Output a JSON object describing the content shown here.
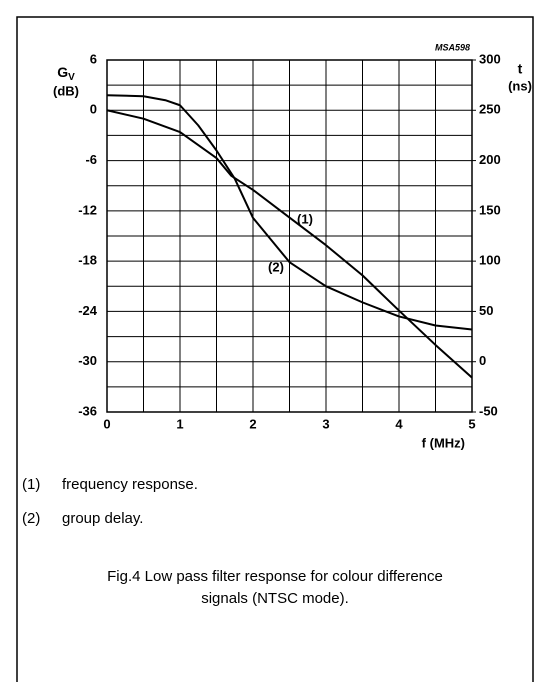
{
  "chart_data": {
    "type": "line",
    "code": "MSA598",
    "ylabel": "G",
    "ylabel_sub": "V",
    "ylabel_unit": "(dB)",
    "y2label": "t",
    "y2label_unit": "(ns)",
    "xlabel": "f  (MHz)",
    "xlim": [
      0,
      5
    ],
    "xticks": [
      0,
      1,
      2,
      3,
      4,
      5
    ],
    "xminor": [
      0.5,
      1.5,
      2.5,
      3.5,
      4.5
    ],
    "ylim": [
      -36,
      6
    ],
    "yticks": [
      6,
      0,
      -6,
      -12,
      -18,
      -24,
      -30,
      -36
    ],
    "yminor": [
      3,
      -3,
      -9,
      -15,
      -21,
      -27,
      -33
    ],
    "y2lim": [
      -50,
      300
    ],
    "y2ticks": [
      300,
      250,
      200,
      150,
      100,
      50,
      0,
      -50
    ],
    "grid": true,
    "series": [
      {
        "name": "frequency response.",
        "label": "(1)",
        "color": "#000000",
        "x": [
          0,
          0.5,
          1,
          1.5,
          1.7,
          2,
          2.5,
          3,
          3.5,
          4,
          4.5,
          5
        ],
        "values": [
          0,
          -1,
          -2.6,
          -5.7,
          -7.8,
          -9.5,
          -12.8,
          -16.1,
          -19.7,
          -23.9,
          -28,
          -31.9
        ]
      },
      {
        "name": "group delay.",
        "label": "(2)",
        "color": "#000000",
        "axis": "y2",
        "x": [
          0,
          0.5,
          0.8,
          1,
          1.25,
          1.5,
          1.75,
          2,
          2.25,
          2.5,
          3,
          3.5,
          4,
          4.5,
          5
        ],
        "values": [
          265,
          264,
          260,
          255,
          235,
          210,
          182,
          143,
          121,
          99,
          75,
          59,
          45,
          36,
          32
        ]
      }
    ],
    "caption": "Fig.4  Low pass filter response for colour difference signals (NTSC mode)."
  }
}
